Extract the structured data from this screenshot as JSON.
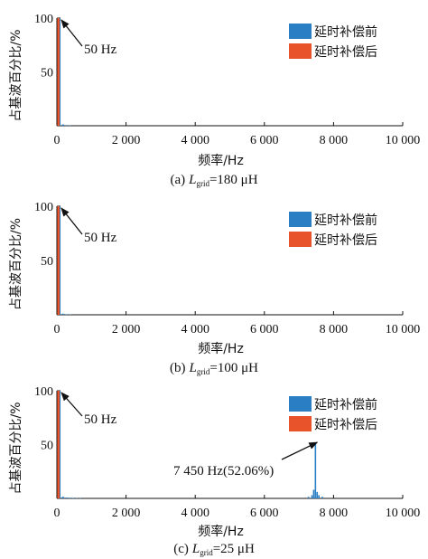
{
  "colors": {
    "before": "#2a7fc4",
    "after": "#e8532b"
  },
  "chart_data": [
    {
      "type": "bar",
      "caption_prefix": "(a)",
      "caption_var": "L",
      "caption_sub": "grid",
      "caption_value": "=180 μH",
      "xlabel": "频率/Hz",
      "ylabel": "占基波百分比/%",
      "xlim": [
        0,
        10000
      ],
      "ylim": [
        0,
        100
      ],
      "xticks": [
        0,
        2000,
        4000,
        6000,
        8000,
        10000
      ],
      "xtick_labels": [
        "0",
        "2 000",
        "4 000",
        "6 000",
        "8 000",
        "10 000"
      ],
      "yticks": [
        50,
        100
      ],
      "ytick_labels": [
        "50",
        "100"
      ],
      "legend": [
        "延时补偿前",
        "延时补偿后"
      ],
      "legend_position": "top-right",
      "series": [
        {
          "name": "延时补偿前",
          "points": [
            [
              50,
              100
            ],
            [
              150,
              1.2
            ],
            [
              250,
              0.6
            ],
            [
              350,
              0.3
            ]
          ]
        },
        {
          "name": "延时补偿后",
          "points": [
            [
              50,
              100
            ]
          ]
        }
      ],
      "annotations": [
        {
          "text": "50 Hz",
          "x": 50,
          "y": 100
        }
      ]
    },
    {
      "type": "bar",
      "caption_prefix": "(b)",
      "caption_var": "L",
      "caption_sub": "grid",
      "caption_value": "=100 μH",
      "xlabel": "频率/Hz",
      "ylabel": "占基波百分比/%",
      "xlim": [
        0,
        10000
      ],
      "ylim": [
        0,
        100
      ],
      "xticks": [
        0,
        2000,
        4000,
        6000,
        8000,
        10000
      ],
      "xtick_labels": [
        "0",
        "2 000",
        "4 000",
        "6 000",
        "8 000",
        "10 000"
      ],
      "yticks": [
        50,
        100
      ],
      "ytick_labels": [
        "50",
        "100"
      ],
      "legend": [
        "延时补偿前",
        "延时补偿后"
      ],
      "legend_position": "top-right",
      "series": [
        {
          "name": "延时补偿前",
          "points": [
            [
              50,
              100
            ],
            [
              150,
              1.0
            ],
            [
              250,
              0.5
            ],
            [
              350,
              0.3
            ]
          ]
        },
        {
          "name": "延时补偿后",
          "points": [
            [
              50,
              100
            ]
          ]
        }
      ],
      "annotations": [
        {
          "text": "50 Hz",
          "x": 50,
          "y": 100
        }
      ]
    },
    {
      "type": "bar",
      "caption_prefix": "(c)",
      "caption_var": "L",
      "caption_sub": "grid",
      "caption_value": "=25 μH",
      "xlabel": "频率/Hz",
      "ylabel": "占基波百分比/%",
      "xlim": [
        0,
        10000
      ],
      "ylim": [
        0,
        100
      ],
      "xticks": [
        0,
        2000,
        4000,
        6000,
        8000,
        10000
      ],
      "xtick_labels": [
        "0",
        "2 000",
        "4 000",
        "6 000",
        "8 000",
        "10 000"
      ],
      "yticks": [
        50,
        100
      ],
      "ytick_labels": [
        "50",
        "100"
      ],
      "legend": [
        "延时补偿前",
        "延时补偿后"
      ],
      "legend_position": "top-right",
      "series": [
        {
          "name": "延时补偿前",
          "points": [
            [
              50,
              100
            ],
            [
              150,
              1.5
            ],
            [
              250,
              0.8
            ],
            [
              350,
              0.6
            ],
            [
              450,
              0.5
            ],
            [
              550,
              0.4
            ],
            [
              650,
              0.3
            ],
            [
              7250,
              1.5
            ],
            [
              7350,
              3
            ],
            [
              7400,
              8
            ],
            [
              7450,
              52.06
            ],
            [
              7500,
              6
            ],
            [
              7550,
              3
            ],
            [
              7650,
              1.5
            ]
          ]
        },
        {
          "name": "延时补偿后",
          "points": [
            [
              50,
              100
            ]
          ]
        }
      ],
      "annotations": [
        {
          "text": "50 Hz",
          "x": 50,
          "y": 100
        },
        {
          "text": "7 450 Hz(52.06%)",
          "x": 7450,
          "y": 52.06
        }
      ]
    }
  ]
}
